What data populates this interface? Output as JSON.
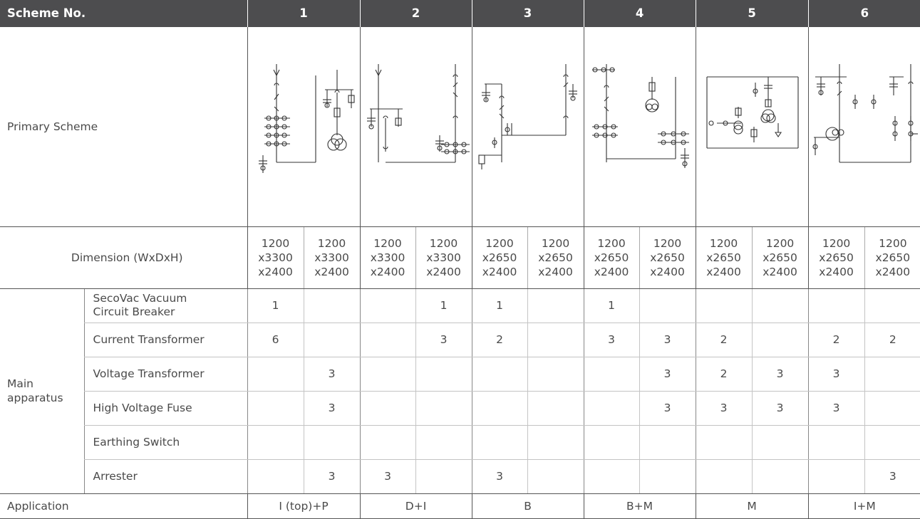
{
  "header": {
    "first": "Scheme No.",
    "schemes": [
      "1",
      "2",
      "3",
      "4",
      "5",
      "6"
    ]
  },
  "rows": {
    "primary": "Primary Scheme",
    "dimension": "Dimension (WxDxH)",
    "main": "Main apparatus",
    "application": "Application"
  },
  "dimensions": [
    [
      "1200",
      "x3300",
      "x2400"
    ],
    [
      "1200",
      "x3300",
      "x2400"
    ],
    [
      "1200",
      "x3300",
      "x2400"
    ],
    [
      "1200",
      "x3300",
      "x2400"
    ],
    [
      "1200",
      "x2650",
      "x2400"
    ],
    [
      "1200",
      "x2650",
      "x2400"
    ],
    [
      "1200",
      "x2650",
      "x2400"
    ],
    [
      "1200",
      "x2650",
      "x2400"
    ],
    [
      "1200",
      "x2650",
      "x2400"
    ],
    [
      "1200",
      "x2650",
      "x2400"
    ],
    [
      "1200",
      "x2650",
      "x2400"
    ],
    [
      "1200",
      "x2650",
      "x2400"
    ]
  ],
  "apparatus": [
    {
      "name": "SecoVac Vacuum Circuit Breaker",
      "values": [
        "1",
        "",
        "",
        "1",
        "1",
        "",
        "1",
        "",
        "",
        "",
        "",
        ""
      ]
    },
    {
      "name": "Current Transformer",
      "values": [
        "6",
        "",
        "",
        "3",
        "2",
        "",
        "3",
        "3",
        "2",
        "",
        "2",
        "2"
      ]
    },
    {
      "name": "Voltage Transformer",
      "values": [
        "",
        "3",
        "",
        "",
        "",
        "",
        "",
        "3",
        "2",
        "3",
        "3",
        ""
      ]
    },
    {
      "name": "High Voltage Fuse",
      "values": [
        "",
        "3",
        "",
        "",
        "",
        "",
        "",
        "3",
        "3",
        "3",
        "3",
        ""
      ]
    },
    {
      "name": "Earthing Switch",
      "values": [
        "",
        "",
        "",
        "",
        "",
        "",
        "",
        "",
        "",
        "",
        "",
        ""
      ]
    },
    {
      "name": "Arrester",
      "values": [
        "",
        "3",
        "3",
        "",
        "3",
        "",
        "",
        "",
        "",
        "",
        "",
        "3"
      ]
    }
  ],
  "applications": [
    "I (top)+P",
    "D+I",
    "B",
    "B+M",
    "M",
    "I+M"
  ]
}
